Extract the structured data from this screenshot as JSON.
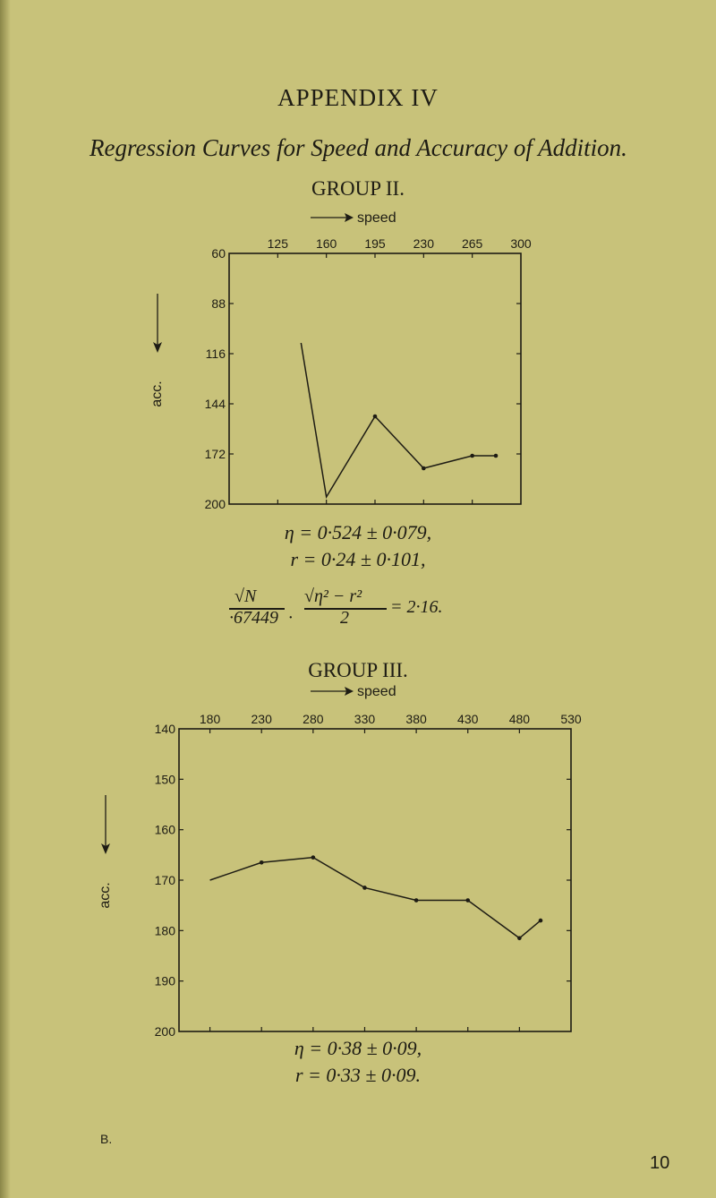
{
  "heading": "APPENDIX IV",
  "subtitle": "Regression Curves for Speed and Accuracy of Addition.",
  "chart_data": [
    {
      "type": "line",
      "title": "GROUP II.",
      "xlabel": "speed",
      "ylabel": "acc.",
      "x_ticks": [
        125,
        160,
        195,
        230,
        265,
        300
      ],
      "y_ticks": [
        60,
        88,
        116,
        144,
        172,
        200
      ],
      "xlim": [
        90,
        300
      ],
      "ylim": [
        60,
        200
      ],
      "y_inverted": true,
      "x_axis_position": "top",
      "x": [
        125,
        160,
        195,
        230,
        265,
        300
      ],
      "values": [
        110,
        196,
        151,
        180,
        173,
        173
      ],
      "markers": [
        false,
        false,
        true,
        true,
        true,
        true
      ],
      "stats": {
        "eta": "η = 0·524 ± 0·079,",
        "r": "r = 0·24 ± 0·101,",
        "frac1_num": "√N",
        "frac1_den": "·67449",
        "dot": "·",
        "frac2_num": "√η² − r²",
        "frac2_den": "2",
        "result": "= 2·16."
      }
    },
    {
      "type": "line",
      "title": "GROUP III.",
      "xlabel": "speed",
      "ylabel": "acc.",
      "x_ticks": [
        180,
        230,
        280,
        330,
        380,
        430,
        480,
        530
      ],
      "y_ticks": [
        140,
        150,
        160,
        170,
        180,
        190,
        200
      ],
      "xlim": [
        150,
        530
      ],
      "ylim": [
        140,
        200
      ],
      "y_inverted": true,
      "x_axis_position": "top",
      "x": [
        180,
        230,
        280,
        330,
        380,
        430,
        480
      ],
      "values": [
        170,
        166.5,
        165.5,
        171.5,
        174,
        174,
        181.5
      ],
      "x_last": 530,
      "value_last": 178,
      "markers": [
        false,
        true,
        true,
        true,
        true,
        true,
        true,
        true
      ],
      "stats": {
        "eta": "η = 0·38 ± 0·09,",
        "r": "r = 0·33 ± 0·09."
      }
    }
  ],
  "footer": {
    "corner": "B.",
    "page_number": "10"
  }
}
